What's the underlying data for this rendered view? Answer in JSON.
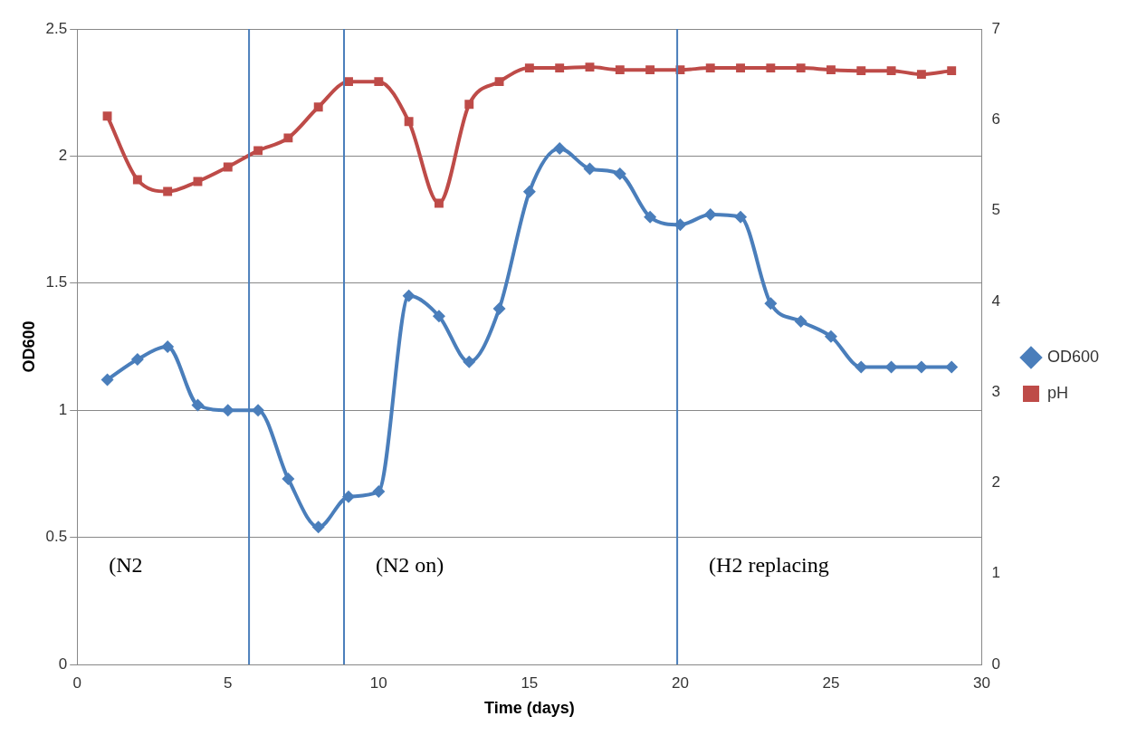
{
  "chart_data": {
    "type": "line",
    "xlabel": "Time (days)",
    "ylabel": "OD600",
    "x": [
      1,
      2,
      3,
      4,
      5,
      6,
      7,
      8,
      9,
      10,
      11,
      12,
      13,
      14,
      15,
      16,
      17,
      18,
      19,
      20,
      21,
      22,
      23,
      24,
      25,
      26,
      27,
      28,
      29
    ],
    "series": [
      {
        "name": "OD600",
        "color": "#4a7ebb",
        "marker": "diamond",
        "values": [
          1.12,
          1.2,
          1.25,
          1.02,
          1.0,
          1.0,
          0.73,
          0.54,
          0.66,
          0.68,
          1.45,
          1.37,
          1.19,
          1.4,
          1.86,
          2.03,
          1.95,
          1.93,
          1.76,
          1.73,
          1.77,
          1.76,
          1.42,
          1.35,
          1.29,
          1.17,
          1.17,
          1.17,
          1.17
        ]
      },
      {
        "name": "pH",
        "color": "#be4b48",
        "marker": "square",
        "axis": "y2",
        "values": [
          6.04,
          5.34,
          5.21,
          5.32,
          5.48,
          5.66,
          5.8,
          6.14,
          6.42,
          6.42,
          5.98,
          5.08,
          6.17,
          6.42,
          6.57,
          6.57,
          6.58,
          6.55,
          6.55,
          6.55,
          6.57,
          6.57,
          6.57,
          6.57,
          6.55,
          6.54,
          6.54,
          6.5,
          6.54
        ]
      }
    ],
    "xlim": [
      0,
      30
    ],
    "xticks": [
      0,
      5,
      10,
      15,
      20,
      25,
      30
    ],
    "ylim": [
      0,
      2.5
    ],
    "yticks": [
      0,
      0.5,
      1,
      1.5,
      2,
      2.5
    ],
    "y2lim": [
      0,
      7
    ],
    "y2ticks": [
      0,
      1,
      2,
      3,
      4,
      5,
      6,
      7
    ],
    "ref_lines": [
      {
        "axis": "x",
        "value": 5.7,
        "color": "#4a7ebb"
      },
      {
        "axis": "x",
        "value": 8.85,
        "color": "#4a7ebb"
      },
      {
        "axis": "x",
        "value": 19.9,
        "color": "#4a7ebb"
      }
    ],
    "annotations": [
      "(N2",
      "(N2 on)",
      "(H2 replacing"
    ],
    "grid": "y",
    "legend": "right",
    "line_style": "solid"
  }
}
